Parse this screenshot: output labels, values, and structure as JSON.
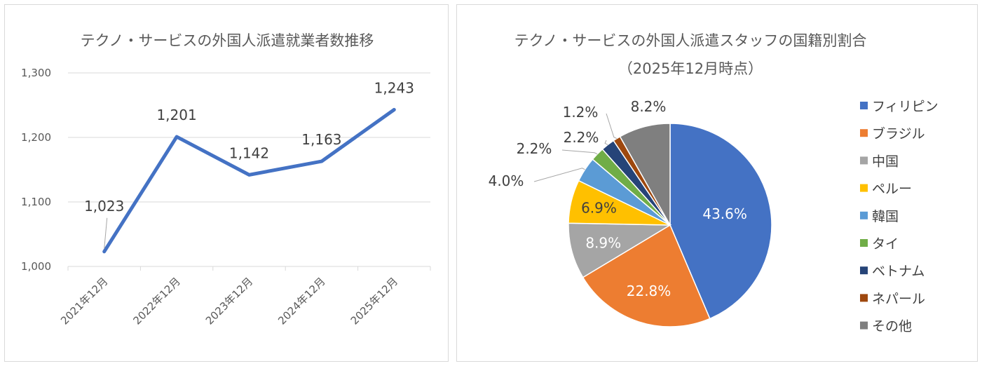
{
  "charts": [
    {
      "type": "line",
      "title": "テクノ・サービスの外国人派遣就業者数推移",
      "categories": [
        "2021年12月",
        "2022年12月",
        "2023年12月",
        "2024年12月",
        "2025年12月"
      ],
      "series": [
        {
          "values": [
            1023,
            1201,
            1142,
            1163,
            1243
          ],
          "color": "#4472c4"
        }
      ],
      "data_labels": [
        "1,023",
        "1,201",
        "1,142",
        "1,163",
        "1,243"
      ],
      "ylim": [
        1000,
        1300
      ],
      "yticks": [
        1000,
        1100,
        1200,
        1300
      ],
      "ytick_labels": [
        "1,000",
        "1,100",
        "1,200",
        "1,300"
      ],
      "grid": true,
      "legend": "none"
    },
    {
      "type": "pie",
      "title": "テクノ・サービスの外国人派遣スタッフの国籍別割合",
      "subtitle": "（2025年12月時点）",
      "legend": "right",
      "slices": [
        {
          "name": "フィリピン",
          "value": 43.6,
          "label": "43.6%",
          "color": "#4472c4"
        },
        {
          "name": "ブラジル",
          "value": 22.8,
          "label": "22.8%",
          "color": "#ed7d31"
        },
        {
          "name": "中国",
          "value": 8.9,
          "label": "8.9%",
          "color": "#a5a5a5"
        },
        {
          "name": "ペルー",
          "value": 6.9,
          "label": "6.9%",
          "color": "#ffc000"
        },
        {
          "name": "韓国",
          "value": 4.0,
          "label": "4.0%",
          "color": "#5b9bd5"
        },
        {
          "name": "タイ",
          "value": 2.2,
          "label": "2.2%",
          "color": "#70ad47"
        },
        {
          "name": "ベトナム",
          "value": 2.2,
          "label": "2.2%",
          "color": "#264478"
        },
        {
          "name": "ネパール",
          "value": 1.2,
          "label": "1.2%",
          "color": "#9e480e"
        },
        {
          "name": "その他",
          "value": 8.2,
          "label": "8.2%",
          "color": "#7f7f7f"
        }
      ]
    }
  ]
}
